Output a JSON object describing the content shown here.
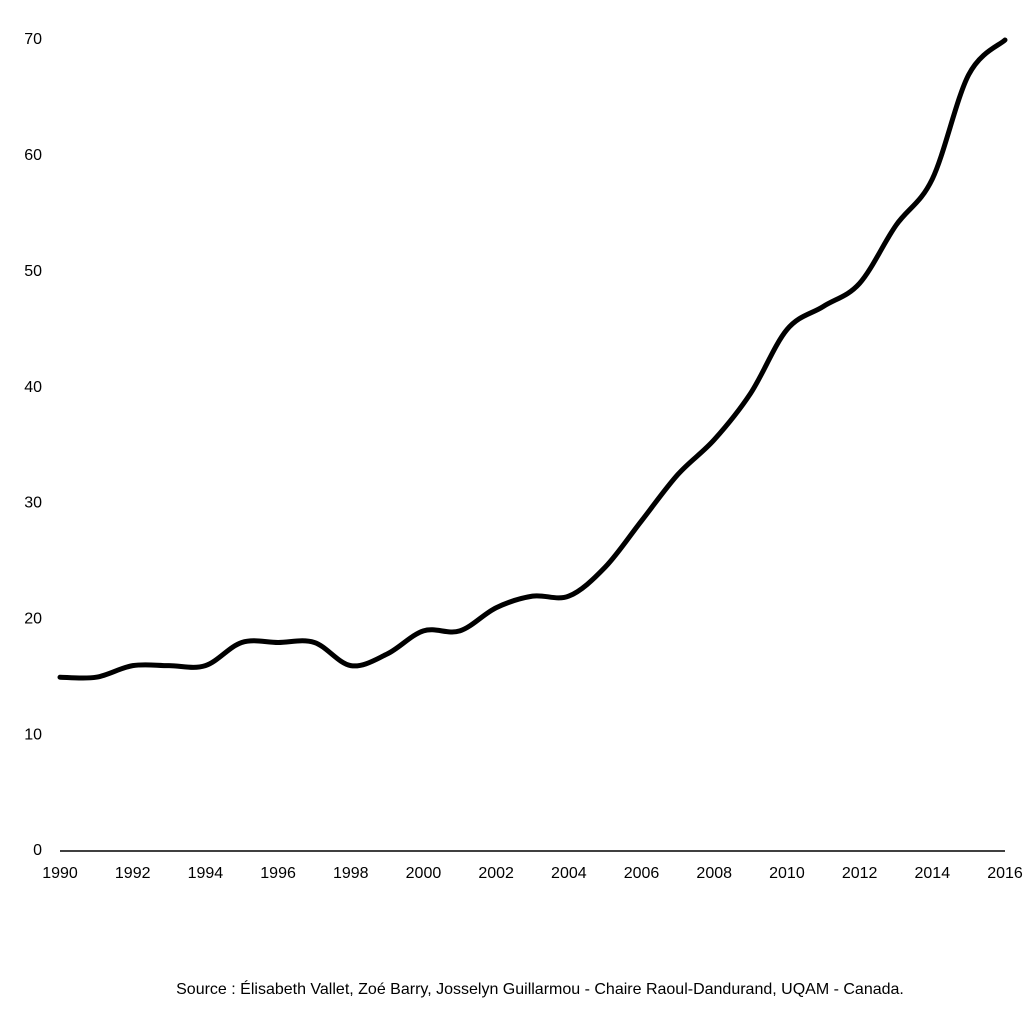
{
  "chart_data": {
    "type": "line",
    "source": "Source : Élisabeth Vallet, Zoé Barry, Josselyn Guillarmou - Chaire Raoul-Dandurand, UQAM - Canada.",
    "x": [
      1990,
      1991,
      1992,
      1993,
      1994,
      1995,
      1996,
      1997,
      1998,
      1999,
      2000,
      2001,
      2002,
      2003,
      2004,
      2005,
      2006,
      2007,
      2008,
      2009,
      2010,
      2011,
      2012,
      2013,
      2014,
      2015,
      2016
    ],
    "values": [
      15,
      15,
      16,
      16,
      16,
      18,
      18,
      18,
      16,
      17,
      19,
      19,
      21,
      22,
      22,
      24.5,
      28.5,
      32.5,
      35.5,
      39.5,
      45,
      47,
      49,
      54,
      58,
      67,
      70
    ],
    "color": "#000000",
    "xlim": [
      1990,
      2016
    ],
    "xticks": [
      1990,
      1992,
      1994,
      1996,
      1998,
      2000,
      2002,
      2004,
      2006,
      2008,
      2010,
      2012,
      2014,
      2016
    ],
    "ylim": [
      0,
      70
    ],
    "yticks": [
      0,
      10,
      20,
      30,
      40,
      50,
      60,
      70
    ]
  }
}
